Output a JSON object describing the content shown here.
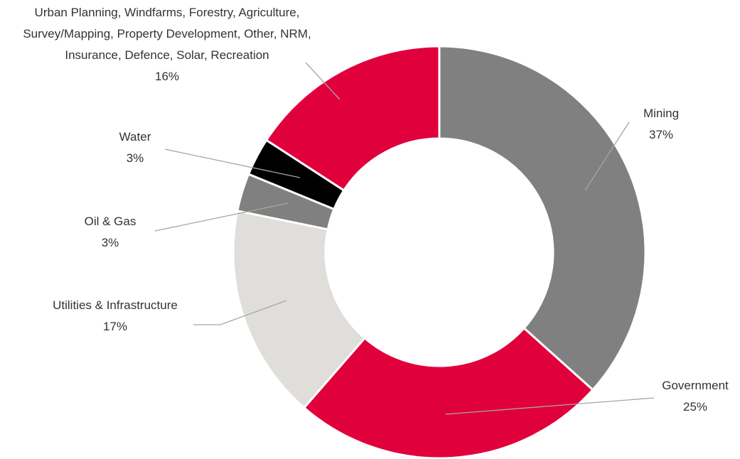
{
  "chart_data": {
    "type": "donut",
    "categories": [
      "Mining",
      "Government",
      "Utilities & Infrastructure",
      "Oil & Gas",
      "Water",
      "Urban Planning, Windfarms, Forestry, Agriculture, Survey/Mapping, Property Development, Other, NRM, Insurance, Defence, Solar, Recreation"
    ],
    "values": [
      37,
      25,
      17,
      3,
      3,
      16
    ],
    "value_labels": [
      "37%",
      "25%",
      "17%",
      "3%",
      "3%",
      "16%"
    ],
    "colors": [
      "#808080",
      "#e0003c",
      "#e0deda",
      "#808080",
      "#000000",
      "#e0003c"
    ]
  }
}
